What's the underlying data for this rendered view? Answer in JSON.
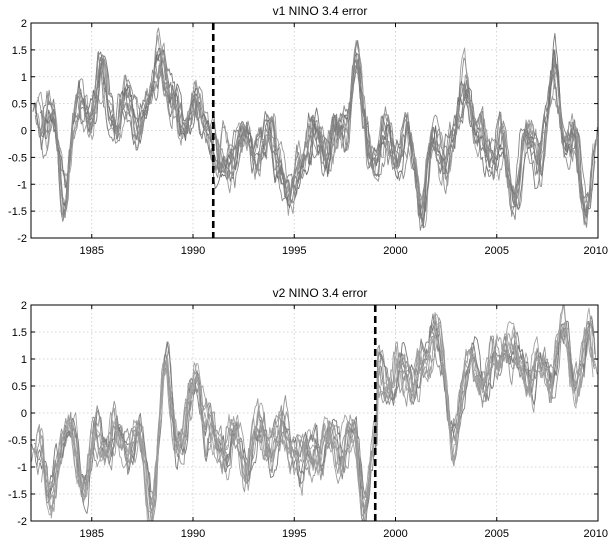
{
  "chart_data": [
    {
      "type": "line",
      "title": "v1 NINO 3.4 error",
      "xlabel": "",
      "ylabel": "",
      "xlim": [
        1982,
        2010
      ],
      "ylim": [
        -2,
        2
      ],
      "x_ticks": [
        "1985",
        "1990",
        "1995",
        "2000",
        "2005",
        "2010"
      ],
      "x_tick_values": [
        1985,
        1990,
        1995,
        2000,
        2005,
        2010
      ],
      "y_ticks": [
        "-2",
        "-1.5",
        "-1",
        "-0.5",
        "0",
        "0.5",
        "1",
        "1.5",
        "2"
      ],
      "y_tick_values": [
        -2,
        -1.5,
        -1,
        -0.5,
        0,
        0.5,
        1,
        1.5,
        2
      ],
      "grid": true,
      "series_count": 10,
      "line_color": "#8c8c8c",
      "marker_line": {
        "x": 1991,
        "style": "dashed",
        "color": "#000000"
      },
      "segments": [
        {
          "start": 1982,
          "end": 1991.5,
          "mean": 0.3
        },
        {
          "start": 1991.5,
          "end": 2010,
          "mean": -0.3
        }
      ],
      "events": [
        {
          "x": 1983.6,
          "value": -1.5
        },
        {
          "x": 1985.4,
          "value": 1.0
        },
        {
          "x": 1988.4,
          "value": 1.8
        },
        {
          "x": 1991.3,
          "value": -1.0
        },
        {
          "x": 1994.8,
          "value": -1.6
        },
        {
          "x": 1998.0,
          "value": 1.7
        },
        {
          "x": 2001.3,
          "value": -1.5
        },
        {
          "x": 2003.5,
          "value": 1.3
        },
        {
          "x": 2005.8,
          "value": -1.3
        },
        {
          "x": 2007.9,
          "value": 1.3
        },
        {
          "x": 2009.4,
          "value": -1.4
        }
      ]
    },
    {
      "type": "line",
      "title": "v2 NINO 3.4 error",
      "xlabel": "",
      "ylabel": "",
      "xlim": [
        1982,
        2010
      ],
      "ylim": [
        -2,
        2
      ],
      "x_ticks": [
        "1985",
        "1990",
        "1995",
        "2000",
        "2005",
        "2010"
      ],
      "x_tick_values": [
        1985,
        1990,
        1995,
        2000,
        2005,
        2010
      ],
      "y_ticks": [
        "-2",
        "-1.5",
        "-1",
        "-0.5",
        "0",
        "0.5",
        "1",
        "1.5",
        "2"
      ],
      "y_tick_values": [
        -2,
        -1.5,
        -1,
        -0.5,
        0,
        0.5,
        1,
        1.5,
        2
      ],
      "grid": true,
      "series_count": 10,
      "line_color": "#8c8c8c",
      "marker_line": {
        "x": 1999,
        "style": "dashed",
        "color": "#000000"
      },
      "segments": [
        {
          "start": 1982,
          "end": 1999.1,
          "mean": -0.5
        },
        {
          "start": 1999.1,
          "end": 2010,
          "mean": 0.7
        }
      ],
      "events": [
        {
          "x": 1982.9,
          "value": -1.9
        },
        {
          "x": 1984.7,
          "value": -1.4
        },
        {
          "x": 1987.9,
          "value": -1.8
        },
        {
          "x": 1988.7,
          "value": 1.0
        },
        {
          "x": 1990.2,
          "value": 1.0
        },
        {
          "x": 1992.6,
          "value": -0.9
        },
        {
          "x": 1995.5,
          "value": -1.1
        },
        {
          "x": 1998.5,
          "value": -1.6
        },
        {
          "x": 2002.0,
          "value": 1.9
        },
        {
          "x": 2002.8,
          "value": -0.8
        },
        {
          "x": 2005.5,
          "value": 1.5
        },
        {
          "x": 2008.2,
          "value": 1.6
        },
        {
          "x": 2009.6,
          "value": 1.3
        }
      ]
    }
  ]
}
